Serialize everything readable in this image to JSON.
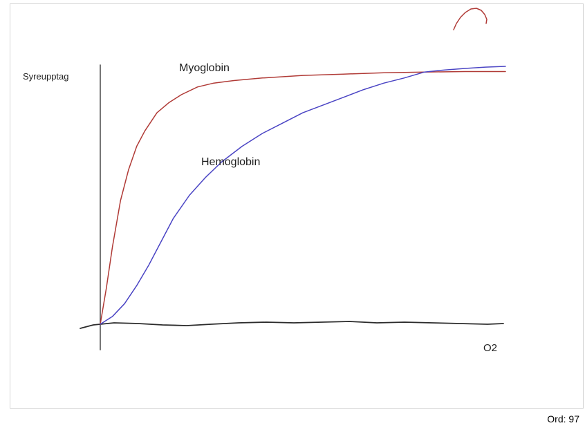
{
  "page": {
    "word_count_label": "Ord: 97"
  },
  "colors": {
    "myoglobin": "#b03a36",
    "hemoglobin": "#4a44c4",
    "axis": "#2b2b2b",
    "y_axis": "#3a3a3a",
    "border": "#d4d4d4"
  },
  "chart_data": {
    "type": "line",
    "title": "",
    "xlabel": "O2",
    "ylabel": "Syreupptag",
    "x_range": [
      0,
      100
    ],
    "y_range": [
      0,
      100
    ],
    "grid": false,
    "legend": "inline-labels",
    "style": "hand-drawn",
    "series": [
      {
        "name": "Myoglobin",
        "color": "#b03a36",
        "x": [
          0,
          1.5,
          3,
          5,
          7,
          9,
          11,
          14,
          17,
          20,
          24,
          28,
          33,
          40,
          50,
          60,
          70,
          80,
          90,
          100
        ],
        "y": [
          0,
          14,
          30,
          48,
          60,
          69,
          75,
          82,
          86,
          89,
          92,
          93.5,
          94.5,
          95.5,
          96.5,
          97,
          97.5,
          97.8,
          98,
          98
        ]
      },
      {
        "name": "Hemoglobin",
        "color": "#4a44c4",
        "x": [
          0,
          3,
          6,
          9,
          12,
          15,
          18,
          22,
          26,
          30,
          35,
          40,
          45,
          50,
          55,
          60,
          65,
          70,
          75,
          80,
          85,
          90,
          95,
          100
        ],
        "y": [
          0,
          3,
          8,
          15,
          23,
          32,
          41,
          50,
          57,
          63,
          69,
          74,
          78,
          82,
          85,
          88,
          91,
          93.5,
          95.5,
          97.8,
          98.6,
          99.2,
          99.7,
          100
        ]
      }
    ],
    "x_axis_stroke_points": [
      [
        101,
        469
      ],
      [
        120,
        464
      ],
      [
        150,
        461
      ],
      [
        185,
        462
      ],
      [
        220,
        464
      ],
      [
        255,
        465
      ],
      [
        290,
        463
      ],
      [
        330,
        461
      ],
      [
        370,
        460
      ],
      [
        410,
        461
      ],
      [
        450,
        460
      ],
      [
        490,
        459
      ],
      [
        530,
        461
      ],
      [
        570,
        460
      ],
      [
        610,
        461
      ],
      [
        650,
        462
      ],
      [
        690,
        463
      ],
      [
        713,
        462
      ]
    ],
    "y_axis_stroke_points": [
      [
        130,
        88
      ],
      [
        130,
        500
      ]
    ],
    "stray_mark": {
      "color": "#b03a36",
      "points": [
        [
          641,
          37
        ],
        [
          645,
          28
        ],
        [
          651,
          19
        ],
        [
          658,
          12
        ],
        [
          666,
          7
        ],
        [
          674,
          6
        ],
        [
          681,
          9
        ],
        [
          686,
          15
        ],
        [
          689,
          22
        ],
        [
          688,
          28
        ]
      ]
    }
  }
}
